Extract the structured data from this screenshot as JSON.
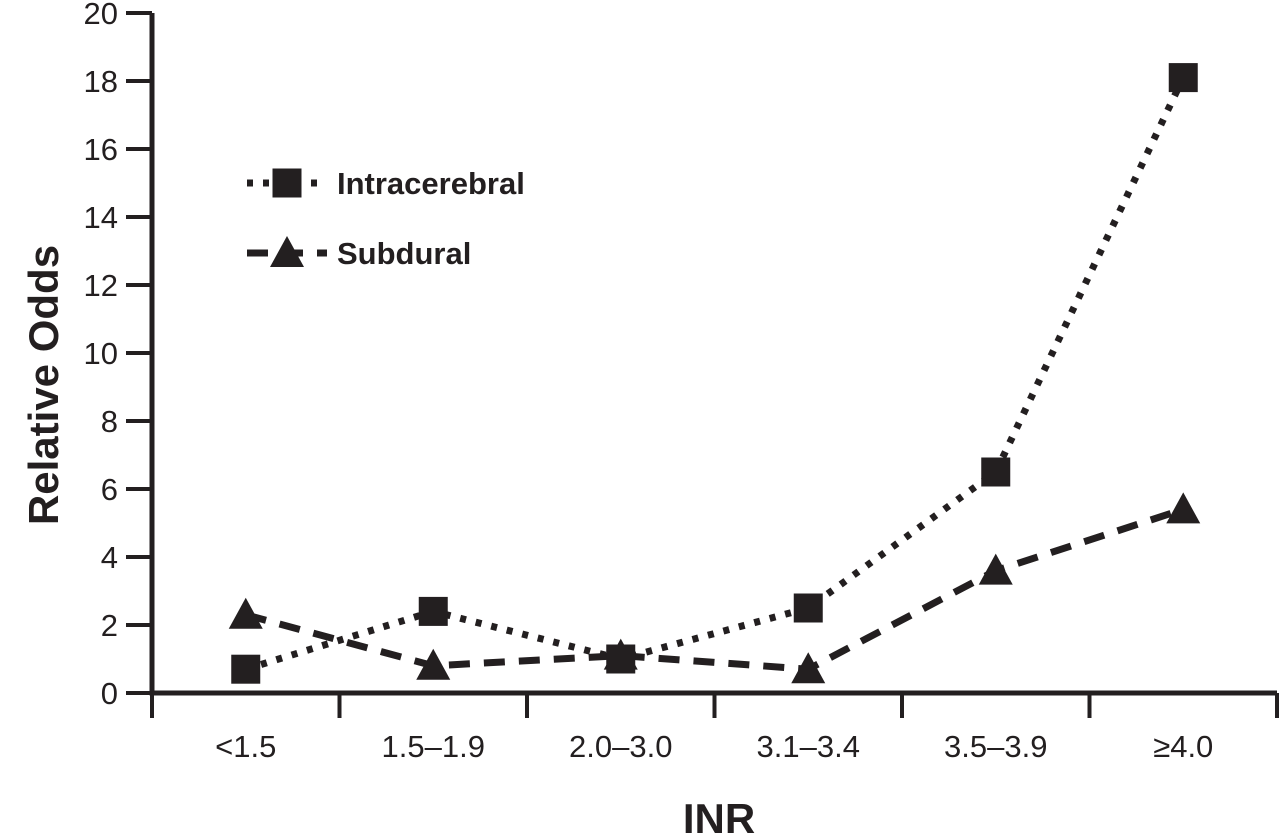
{
  "figure": {
    "background": "#ffffff",
    "ink_color": "#231f20"
  },
  "chart_data": {
    "type": "line",
    "title": "",
    "xlabel": "INR",
    "ylabel": "Relative Odds",
    "categories": [
      "<1.5",
      "1.5–1.9",
      "2.0–3.0",
      "3.1–3.4",
      "3.5–3.9",
      "≥4.0"
    ],
    "series": [
      {
        "name": "Intracerebral",
        "marker": "square",
        "line_style": "dotted",
        "values": [
          0.7,
          2.4,
          1.0,
          2.5,
          6.5,
          18.1
        ]
      },
      {
        "name": "Subdural",
        "marker": "triangle",
        "line_style": "dashed",
        "values": [
          2.3,
          0.8,
          1.1,
          0.7,
          3.6,
          5.4
        ]
      }
    ],
    "ylim": [
      0,
      20
    ],
    "ytick_step": 2,
    "yticks": [
      0,
      2,
      4,
      6,
      8,
      10,
      12,
      14,
      16,
      18,
      20
    ],
    "grid": false,
    "legend_position": "upper-left-inside"
  }
}
